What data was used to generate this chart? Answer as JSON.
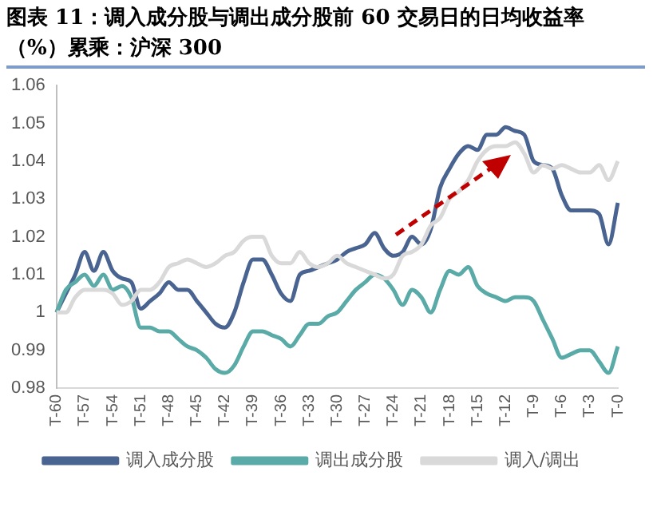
{
  "chart_data": {
    "type": "line",
    "title": "图表 11：调入成分股与调出成分股前 60 交易日的日均收益率（%）累乘：沪深 300",
    "categories": [
      "T-60",
      null,
      null,
      "T-57",
      null,
      null,
      "T-54",
      null,
      null,
      "T-51",
      null,
      null,
      "T-48",
      null,
      null,
      "T-45",
      null,
      null,
      "T-42",
      null,
      null,
      "T-39",
      null,
      null,
      "T-36",
      null,
      null,
      "T-33",
      null,
      null,
      "T-30",
      null,
      null,
      "T-27",
      null,
      null,
      "T-24",
      null,
      null,
      "T-21",
      null,
      null,
      "T-18",
      null,
      null,
      "T-15",
      null,
      null,
      "T-12",
      null,
      null,
      "T-9",
      null,
      null,
      "T-6",
      null,
      null,
      "T-3",
      null,
      null,
      "T-0"
    ],
    "series": [
      {
        "name": "调入成分股",
        "color": "#4a6491",
        "values": [
          1.0,
          1.005,
          1.01,
          1.016,
          1.011,
          1.016,
          1.011,
          1.009,
          1.008,
          1.001,
          1.003,
          1.005,
          1.008,
          1.006,
          1.006,
          1.003,
          1.0,
          0.997,
          0.996,
          1.0,
          1.008,
          1.014,
          1.014,
          1.01,
          1.005,
          1.003,
          1.01,
          1.011,
          1.012,
          1.013,
          1.014,
          1.016,
          1.017,
          1.018,
          1.021,
          1.017,
          1.015,
          1.016,
          1.02,
          1.018,
          1.022,
          1.033,
          1.038,
          1.042,
          1.044,
          1.043,
          1.047,
          1.047,
          1.049,
          1.048,
          1.047,
          1.04,
          1.039,
          1.038,
          1.031,
          1.027,
          1.027,
          1.027,
          1.026,
          1.018,
          1.029
        ]
      },
      {
        "name": "调出成分股",
        "color": "#5aaba8",
        "values": [
          1.0,
          1.006,
          1.008,
          1.01,
          1.007,
          1.01,
          1.006,
          1.007,
          1.004,
          0.996,
          0.996,
          0.995,
          0.995,
          0.993,
          0.991,
          0.99,
          0.988,
          0.985,
          0.984,
          0.986,
          0.991,
          0.995,
          0.995,
          0.994,
          0.993,
          0.991,
          0.994,
          0.997,
          0.997,
          0.999,
          1.0,
          1.003,
          1.006,
          1.008,
          1.01,
          1.009,
          1.006,
          1.002,
          1.006,
          1.004,
          1.0,
          1.006,
          1.011,
          1.01,
          1.012,
          1.007,
          1.005,
          1.004,
          1.003,
          1.004,
          1.004,
          1.003,
          0.998,
          0.993,
          0.988,
          0.989,
          0.99,
          0.99,
          0.987,
          0.984,
          0.991
        ]
      },
      {
        "name": "调入/调出",
        "color": "#d9d9d9",
        "values": [
          1.0,
          1.0,
          1.004,
          1.006,
          1.006,
          1.006,
          1.005,
          1.002,
          1.003,
          1.006,
          1.006,
          1.008,
          1.012,
          1.013,
          1.014,
          1.013,
          1.012,
          1.013,
          1.015,
          1.016,
          1.019,
          1.02,
          1.02,
          1.015,
          1.013,
          1.013,
          1.016,
          1.013,
          1.012,
          1.013,
          1.015,
          1.013,
          1.012,
          1.011,
          1.01,
          1.009,
          1.01,
          1.015,
          1.016,
          1.018,
          1.023,
          1.025,
          1.03,
          1.032,
          1.035,
          1.04,
          1.043,
          1.044,
          1.044,
          1.045,
          1.042,
          1.037,
          1.039,
          1.038,
          1.039,
          1.038,
          1.037,
          1.037,
          1.039,
          1.035,
          1.04
        ]
      }
    ],
    "ylim": [
      0.98,
      1.06
    ],
    "yticks": [
      0.98,
      0.99,
      1,
      1.01,
      1.02,
      1.03,
      1.04,
      1.05,
      1.06
    ],
    "grid": false,
    "legend": "bottom",
    "marker": "none",
    "line_style": "solid"
  }
}
